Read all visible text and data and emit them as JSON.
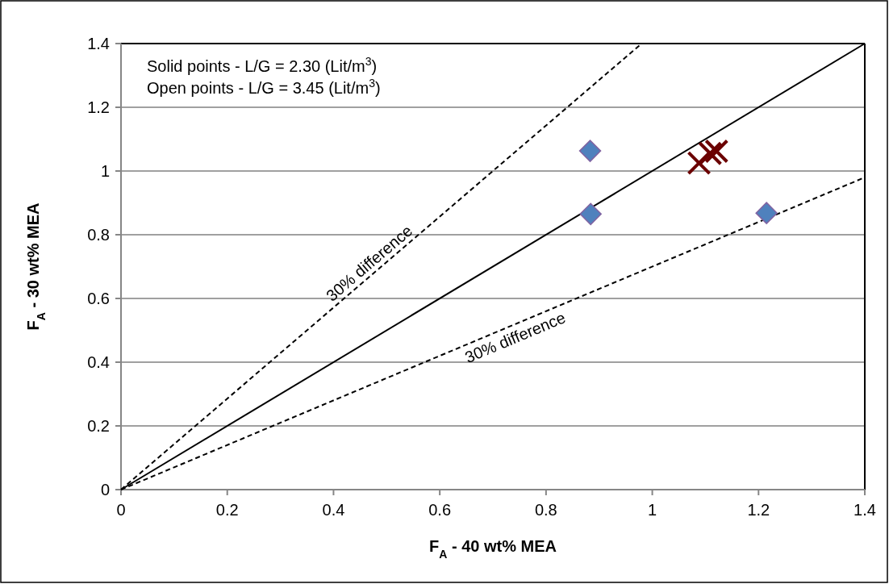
{
  "chart_data": {
    "type": "scatter",
    "xlabel": "F$_{A}$ - 40 wt% MEA",
    "ylabel": "F$_{A}$ - 30 wt% MEA",
    "xlim": [
      0,
      1.4
    ],
    "ylim": [
      0,
      1.4
    ],
    "xticks": [
      0,
      0.2,
      0.4,
      0.6,
      0.8,
      1,
      1.2,
      1.4
    ],
    "yticks": [
      0,
      0.2,
      0.4,
      0.6,
      0.8,
      1,
      1.2,
      1.4
    ],
    "grid": "y",
    "annotations": [
      "Solid points - L/G = 2.30 (Lit/m$^{3}$)",
      "Open points - L/G = 3.45 (Lit/m$^{3}$)",
      {
        "text": "30% difference",
        "x": 0.48,
        "y": 0.686
      },
      {
        "text": "30% difference",
        "x": 0.733,
        "y": 0.513
      }
    ],
    "series": [
      {
        "type": "line",
        "color": "#000000",
        "x": [
          0,
          1.4
        ],
        "values": [
          0,
          1.4
        ],
        "marker": "none",
        "line_style": "solid"
      },
      {
        "type": "line",
        "color": "#000000",
        "x": [
          0,
          0.98
        ],
        "values": [
          0,
          1.4
        ],
        "marker": "none",
        "line_style": "dashed"
      },
      {
        "type": "line",
        "color": "#000000",
        "x": [
          0,
          1.4
        ],
        "values": [
          0,
          0.98
        ],
        "marker": "none",
        "line_style": "dashed"
      },
      {
        "color": "#4f81bd",
        "x": [
          0.883,
          0.884,
          1.215
        ],
        "values": [
          1.063,
          0.865,
          0.868
        ],
        "marker": "diamond"
      },
      {
        "color": "#6b0000",
        "x": [
          1.088,
          1.109,
          1.121
        ],
        "values": [
          1.025,
          1.055,
          1.062
        ],
        "marker": "cross"
      }
    ]
  }
}
